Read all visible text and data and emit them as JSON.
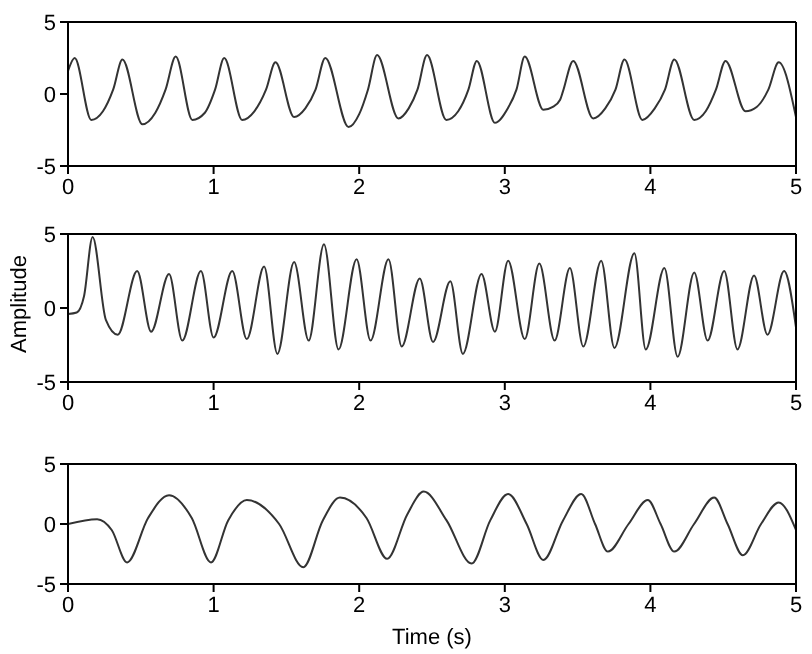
{
  "chart_data": [
    {
      "type": "line",
      "x": [
        0,
        0.046,
        0.16,
        0.24,
        0.31,
        0.374,
        0.511,
        0.6,
        0.67,
        0.74,
        0.854,
        0.94,
        1.01,
        1.073,
        1.196,
        1.28,
        1.36,
        1.425,
        1.553,
        1.63,
        1.7,
        1.767,
        1.927,
        2.0,
        2.06,
        2.123,
        2.269,
        2.34,
        2.4,
        2.466,
        2.598,
        2.68,
        2.75,
        2.808,
        2.932,
        3.02,
        3.08,
        3.137,
        3.265,
        3.33,
        3.38,
        3.4,
        3.47,
        3.607,
        3.69,
        3.76,
        3.822,
        3.945,
        4.03,
        4.1,
        4.164,
        4.301,
        4.38,
        4.45,
        4.516,
        4.653,
        4.73,
        4.81,
        4.881,
        5
      ],
      "series": [
        {
          "color": "#333333",
          "values": [
            1.6,
            2.5,
            -1.8,
            -1.2,
            0.3,
            2.4,
            -2.1,
            -1.3,
            0.3,
            2.6,
            -1.8,
            -1.3,
            0.3,
            2.5,
            -1.8,
            -1.2,
            0.3,
            2.2,
            -1.6,
            -1.0,
            0.3,
            2.5,
            -2.3,
            -1.4,
            0.3,
            2.7,
            -1.7,
            -1.0,
            0.3,
            2.7,
            -1.8,
            -1.2,
            0.3,
            2.3,
            -2.0,
            -1.0,
            0.3,
            2.6,
            -1.1,
            -0.9,
            -0.4,
            0.2,
            2.3,
            -1.7,
            -1.0,
            0.3,
            2.4,
            -1.8,
            -1.0,
            0.3,
            2.4,
            -1.8,
            -1.2,
            0.3,
            2.3,
            -1.2,
            -0.9,
            0.3,
            2.2,
            -1.6
          ]
        }
      ],
      "xlim": [
        0,
        5
      ],
      "xticks": [
        0,
        1,
        2,
        3,
        4,
        5
      ],
      "ylim": [
        -5,
        5
      ],
      "yticks": [
        -5,
        0,
        5
      ],
      "grid": false,
      "legend": false,
      "marker": "none",
      "line_style": "solid"
    },
    {
      "type": "line",
      "ylabel": "Amplitude",
      "x": [
        0,
        0.06,
        0.11,
        0.169,
        0.26,
        0.342,
        0.475,
        0.571,
        0.694,
        0.785,
        0.913,
        1.0,
        1.128,
        1.228,
        1.347,
        1.438,
        1.553,
        1.653,
        1.758,
        1.858,
        1.982,
        2.078,
        2.201,
        2.292,
        2.416,
        2.507,
        2.626,
        2.712,
        2.84,
        2.932,
        3.023,
        3.137,
        3.237,
        3.342,
        3.447,
        3.539,
        3.662,
        3.753,
        3.89,
        3.968,
        4.096,
        4.187,
        4.301,
        4.393,
        4.507,
        4.598,
        4.712,
        4.804,
        4.918,
        5
      ],
      "series": [
        {
          "color": "#333333",
          "values": [
            -0.4,
            -0.3,
            0.8,
            4.8,
            -0.8,
            -1.8,
            2.5,
            -1.6,
            2.3,
            -2.2,
            2.5,
            -2.0,
            2.5,
            -2.1,
            2.8,
            -3.1,
            3.1,
            -2.2,
            4.3,
            -2.8,
            3.3,
            -2.2,
            3.3,
            -2.6,
            2.0,
            -2.3,
            1.8,
            -3.1,
            2.3,
            -1.6,
            3.2,
            -2.1,
            3.0,
            -2.2,
            2.7,
            -2.6,
            3.2,
            -2.7,
            3.7,
            -2.8,
            2.7,
            -3.3,
            2.4,
            -2.2,
            2.5,
            -2.8,
            2.2,
            -1.8,
            2.5,
            -1.3
          ]
        }
      ],
      "xlim": [
        0,
        5
      ],
      "xticks": [
        0,
        1,
        2,
        3,
        4,
        5
      ],
      "ylim": [
        -5,
        5
      ],
      "yticks": [
        -5,
        0,
        5
      ],
      "grid": false,
      "legend": false,
      "marker": "none",
      "line_style": "solid"
    },
    {
      "type": "line",
      "xlabel": "Time (s)",
      "x": [
        0,
        0.2,
        0.3,
        0.406,
        0.55,
        0.694,
        0.85,
        0.982,
        1.1,
        1.228,
        1.45,
        1.616,
        1.75,
        1.868,
        2.05,
        2.192,
        2.33,
        2.443,
        2.6,
        2.772,
        2.9,
        3.023,
        3.15,
        3.265,
        3.4,
        3.525,
        3.62,
        3.708,
        3.85,
        3.982,
        4.07,
        4.164,
        4.3,
        4.438,
        4.53,
        4.635,
        4.76,
        4.881,
        5
      ],
      "series": [
        {
          "color": "#333333",
          "values": [
            0,
            0.4,
            -0.5,
            -3.2,
            0.5,
            2.4,
            0.5,
            -3.2,
            0.3,
            2.0,
            0.0,
            -3.6,
            0.3,
            2.2,
            0.5,
            -2.9,
            0.8,
            2.7,
            0.3,
            -3.3,
            0.3,
            2.5,
            0.0,
            -3.0,
            0.3,
            2.5,
            0.0,
            -2.3,
            0.0,
            2.0,
            0.0,
            -2.3,
            0.0,
            2.2,
            0.0,
            -2.6,
            0.0,
            1.8,
            -0.5
          ]
        }
      ],
      "xlim": [
        0,
        5
      ],
      "xticks": [
        0,
        1,
        2,
        3,
        4,
        5
      ],
      "ylim": [
        -5,
        5
      ],
      "yticks": [
        -5,
        0,
        5
      ],
      "grid": false,
      "legend": false,
      "marker": "none",
      "line_style": "solid"
    }
  ]
}
